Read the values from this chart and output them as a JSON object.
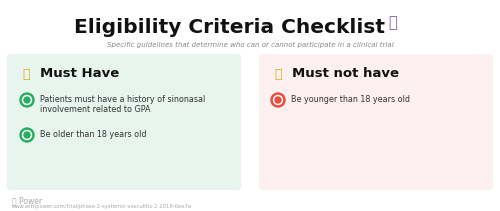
{
  "title": "Eligibility Criteria Checklist",
  "subtitle": "Specific guidelines that determine who can or cannot participate in a clinical trial",
  "left_box_bg": "#e8f5ee",
  "right_box_bg": "#fdf0f0",
  "left_header": "Must Have",
  "right_header": "Must not have",
  "left_items": [
    "Patients must have a history of sinonasal\ninvolvement related to GPA",
    "Be older than 18 years old"
  ],
  "right_items": [
    "Be younger than 18 years old"
  ],
  "include_icon_color": "#27ae60",
  "exclude_icon_color": "#e74c3c",
  "thumb_color": "#e6a817",
  "clipboard_color": "#7b5ea7",
  "watermark": "Power",
  "url": "www.withpower.com/trial/phase-2-systemic-vasculitis-2-2019-6ee7e",
  "bg_color": "#ffffff",
  "header_color": "#111111",
  "subtext_color": "#888888",
  "item_color": "#333333",
  "watermark_color": "#aaaaaa"
}
